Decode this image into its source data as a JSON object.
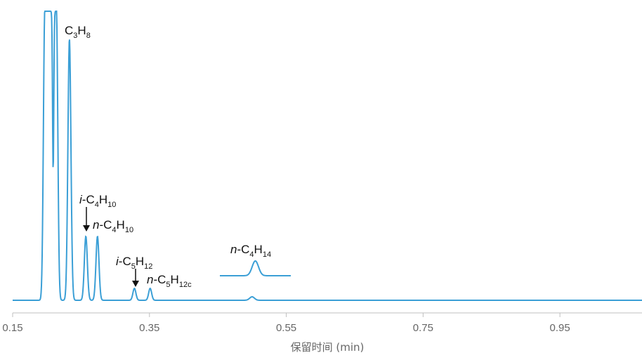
{
  "chart_data": {
    "type": "line",
    "title": "",
    "xlabel": "保留时间 (min)",
    "ylabel": "",
    "xlim": [
      0.15,
      1.07
    ],
    "ylim": [
      0,
      100
    ],
    "x_ticks": [
      "0.15",
      "0.35",
      "0.55",
      "0.75",
      "0.95"
    ],
    "grid": false,
    "line_color": "#3b9fd6",
    "baseline": 0.5,
    "peaks": [
      {
        "rt": 0.197,
        "height": 100,
        "width": 0.002,
        "shape": "flat-top-start"
      },
      {
        "rt": 0.214,
        "height": 100,
        "width": 0.002,
        "shape": "flat-top-end"
      },
      {
        "rt": 0.233,
        "height": 90,
        "width": 0.0022
      },
      {
        "rt": 0.257,
        "height": 22,
        "width": 0.0022
      },
      {
        "rt": 0.274,
        "height": 22,
        "width": 0.0022
      },
      {
        "rt": 0.328,
        "height": 4.1,
        "width": 0.0022
      },
      {
        "rt": 0.351,
        "height": 4.1,
        "width": 0.0022
      },
      {
        "rt": 0.5,
        "height": 1.2,
        "width": 0.0035
      }
    ],
    "inset": {
      "rt_range": [
        0.45,
        0.55
      ],
      "peak_rt": 0.5,
      "label": "n-C4H14"
    },
    "peak_labels": [
      {
        "prefix": "",
        "parts": [
          [
            "C",
            false
          ],
          [
            "3",
            true
          ],
          [
            "H",
            false
          ],
          [
            "8",
            true
          ]
        ]
      },
      {
        "prefix": "i",
        "parts": [
          [
            "-C",
            false
          ],
          [
            "4",
            true
          ],
          [
            "H",
            false
          ],
          [
            "10",
            true
          ]
        ]
      },
      {
        "prefix": "n",
        "parts": [
          [
            "-C",
            false
          ],
          [
            "4",
            true
          ],
          [
            "H",
            false
          ],
          [
            "10",
            true
          ]
        ]
      },
      {
        "prefix": "i",
        "parts": [
          [
            "-C",
            false
          ],
          [
            "5",
            true
          ],
          [
            "H",
            false
          ],
          [
            "12",
            true
          ]
        ]
      },
      {
        "prefix": "n",
        "parts": [
          [
            "-C",
            false
          ],
          [
            "5",
            true
          ],
          [
            "H",
            false
          ],
          [
            "12c",
            true
          ]
        ]
      },
      {
        "prefix": "n",
        "parts": [
          [
            "-C",
            false
          ],
          [
            "4",
            true
          ],
          [
            "H",
            false
          ],
          [
            "14",
            true
          ]
        ]
      }
    ]
  }
}
